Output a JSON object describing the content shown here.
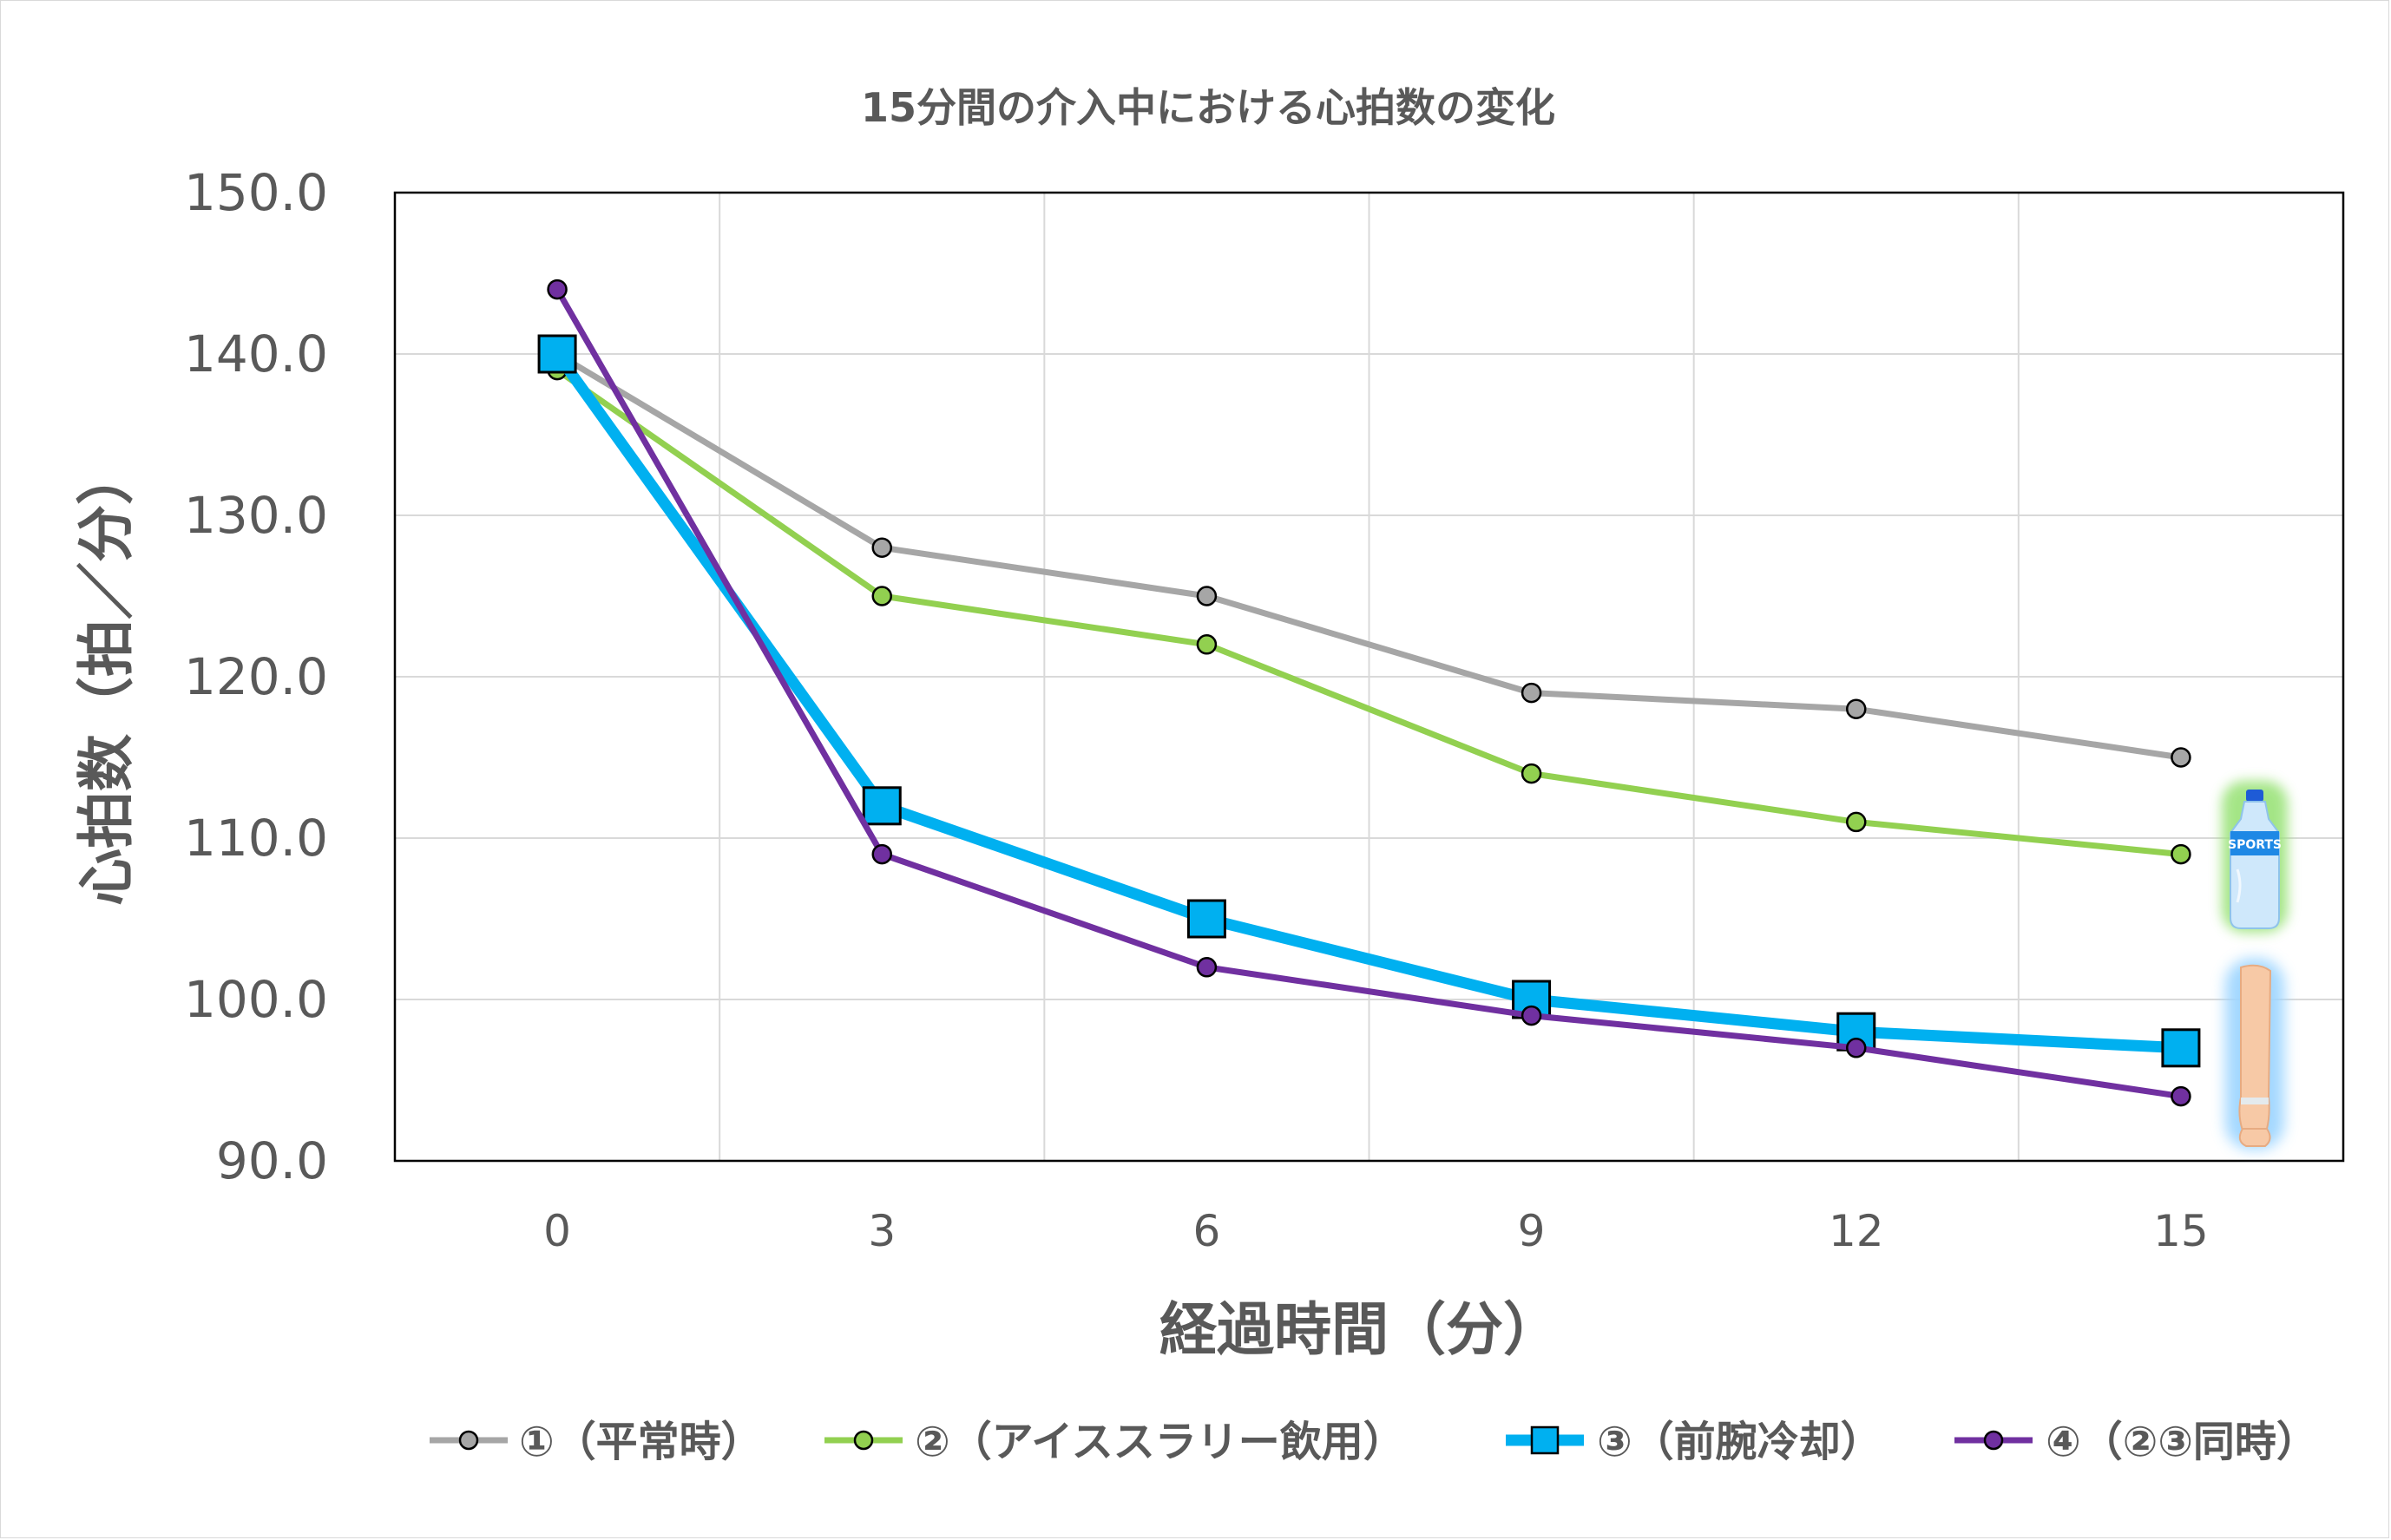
{
  "chart_data": {
    "type": "line",
    "title": "15分間の介入中における心拍数の変化",
    "xlabel": "経過時間（分）",
    "ylabel": "心拍数（拍／分）",
    "categories": [
      "0",
      "3",
      "6",
      "9",
      "12",
      "15"
    ],
    "x": [
      0,
      3,
      6,
      9,
      12,
      15
    ],
    "xlim": [
      -1.5,
      16.5
    ],
    "ylim": [
      90,
      150
    ],
    "y_ticks": [
      "90.0",
      "100.0",
      "110.0",
      "120.0",
      "130.0",
      "140.0",
      "150.0"
    ],
    "y_tick_values": [
      90,
      100,
      110,
      120,
      130,
      140,
      150
    ],
    "grid": true,
    "legend_position": "bottom",
    "series": [
      {
        "name": "①（平常時）",
        "values": [
          140,
          128,
          125,
          119,
          118,
          115
        ],
        "color": "#a6a6a6",
        "marker": "circle"
      },
      {
        "name": "②（アイススラリー飲用）",
        "values": [
          139,
          125,
          122,
          114,
          111,
          109
        ],
        "color": "#92d050",
        "marker": "circle"
      },
      {
        "name": "③（前腕冷却）",
        "values": [
          140,
          112,
          105,
          100,
          98,
          97
        ],
        "color": "#00b0f0",
        "marker": "square"
      },
      {
        "name": "④（②③同時）",
        "values": [
          144,
          109,
          102,
          99,
          97,
          94
        ],
        "color": "#7030a0",
        "marker": "circle"
      }
    ],
    "annotations": [
      {
        "name": "sports-bottle-icon",
        "label": "SPORTS"
      },
      {
        "name": "forearm-icon"
      }
    ]
  }
}
